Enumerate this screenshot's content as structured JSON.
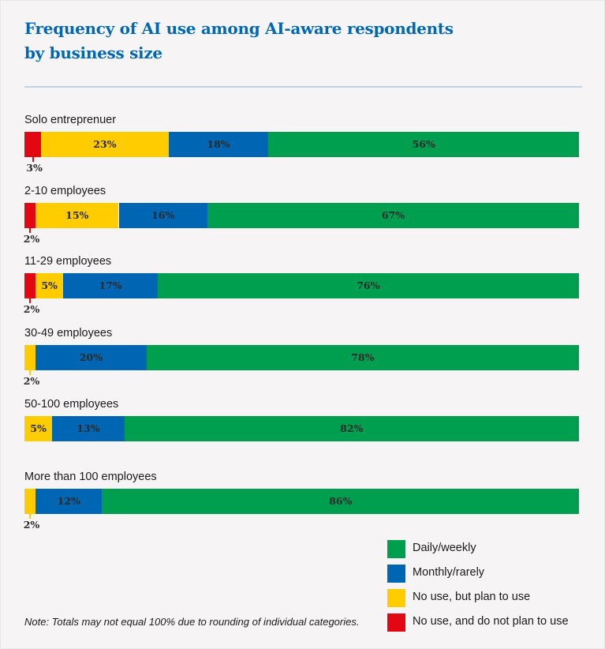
{
  "chart_data": {
    "type": "bar",
    "orientation": "horizontal",
    "stacked": true,
    "title": "Frequency of AI use among AI-aware respondents by business size",
    "title_lines": [
      "Frequency of AI use among AI-aware respondents",
      "by business size"
    ],
    "xlabel": "",
    "ylabel": "",
    "categories": [
      "Solo entreprenuer",
      "2-10 employees",
      "11-29 employees",
      "30-49 employees",
      "50-100 employees",
      "More than 100 employees"
    ],
    "series": [
      {
        "name": "No use, and do not plan to use",
        "color": "#e30613",
        "values": [
          3,
          2,
          2,
          0,
          0,
          0
        ]
      },
      {
        "name": "No use, but plan to use",
        "color": "#ffcc00",
        "values": [
          23,
          15,
          5,
          2,
          5,
          2
        ]
      },
      {
        "name": "Monthly/rarely",
        "color": "#0066b3",
        "values": [
          18,
          16,
          17,
          20,
          13,
          12
        ]
      },
      {
        "name": "Daily/weekly",
        "color": "#009e4f",
        "values": [
          56,
          67,
          76,
          78,
          82,
          86
        ]
      }
    ],
    "data_labels": [
      [
        "3%",
        "23%",
        "18%",
        "56%"
      ],
      [
        "2%",
        "15%",
        "16%",
        "67%"
      ],
      [
        "2%",
        "5%",
        "17%",
        "76%"
      ],
      [
        "",
        "2%",
        "20%",
        "78%"
      ],
      [
        "",
        "5%",
        "13%",
        "82%"
      ],
      [
        "",
        "2%",
        "12%",
        "86%"
      ]
    ],
    "legend": {
      "placement": "bottom-right",
      "entries": [
        {
          "label": "Daily/weekly",
          "color": "#009e4f"
        },
        {
          "label": "Monthly/rarely",
          "color": "#0066b3"
        },
        {
          "label": "No use, but plan to use",
          "color": "#ffcc00"
        },
        {
          "label": "No use, and do not plan to use",
          "color": "#e30613"
        }
      ]
    },
    "note": "Note: Totals may not equal 100% due to rounding of individual categories.",
    "grid": false
  }
}
